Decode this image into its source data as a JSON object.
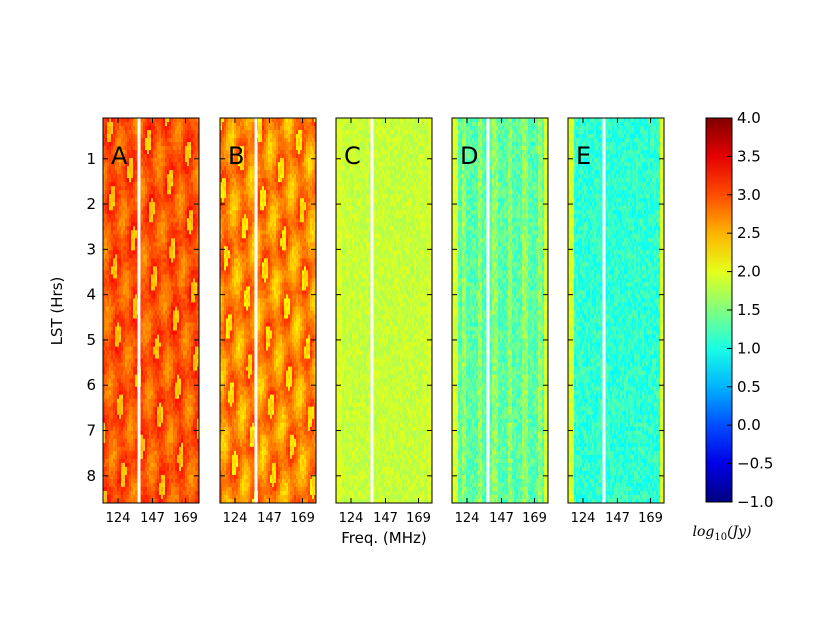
{
  "chart_data": {
    "type": "heatmap",
    "title": "",
    "xlabel": "Freq. (MHz)",
    "ylabel": "LST (Hrs)",
    "x_ticks": [
      124,
      147,
      169
    ],
    "x_tick_labels": [
      "124",
      "147",
      "169"
    ],
    "xlim": [
      114,
      178
    ],
    "y_ticks": [
      1,
      2,
      3,
      4,
      5,
      6,
      7,
      8
    ],
    "y_tick_labels": [
      "1",
      "2",
      "3",
      "4",
      "5",
      "6",
      "7",
      "8"
    ],
    "ylim": [
      0.1,
      8.6
    ],
    "y_inverted": true,
    "colorbar": {
      "label": "log_{10}(Jy)",
      "label_math": "log",
      "label_sub": "10",
      "label_arg": "(Jy)",
      "range": [
        -1.0,
        4.0
      ],
      "ticks": [
        4.0,
        3.5,
        3.0,
        2.5,
        2.0,
        1.5,
        1.0,
        0.5,
        0.0,
        -0.5,
        -1.0
      ],
      "tick_labels": [
        "4.0",
        "3.5",
        "3.0",
        "2.5",
        "2.0",
        "1.5",
        "1.0",
        "0.5",
        "0.0",
        "−0.5",
        "−1.0"
      ],
      "colormap": "jet"
    },
    "panels": [
      {
        "label": "A",
        "mean_log10_jy": 3.1,
        "spread": 0.35,
        "texture": "filaments",
        "flagged_channel_mhz": 138
      },
      {
        "label": "B",
        "mean_log10_jy": 2.9,
        "spread": 0.45,
        "texture": "filaments",
        "flagged_channel_mhz": 138
      },
      {
        "label": "C",
        "mean_log10_jy": 1.85,
        "spread": 0.15,
        "texture": "noise",
        "flagged_channel_mhz": 138
      },
      {
        "label": "D",
        "mean_log10_jy": 1.3,
        "spread": 0.25,
        "texture": "noise-stripes",
        "flagged_channel_mhz": 138
      },
      {
        "label": "E",
        "mean_log10_jy": 1.1,
        "spread": 0.25,
        "texture": "noise",
        "flagged_channel_mhz": 138
      }
    ]
  }
}
